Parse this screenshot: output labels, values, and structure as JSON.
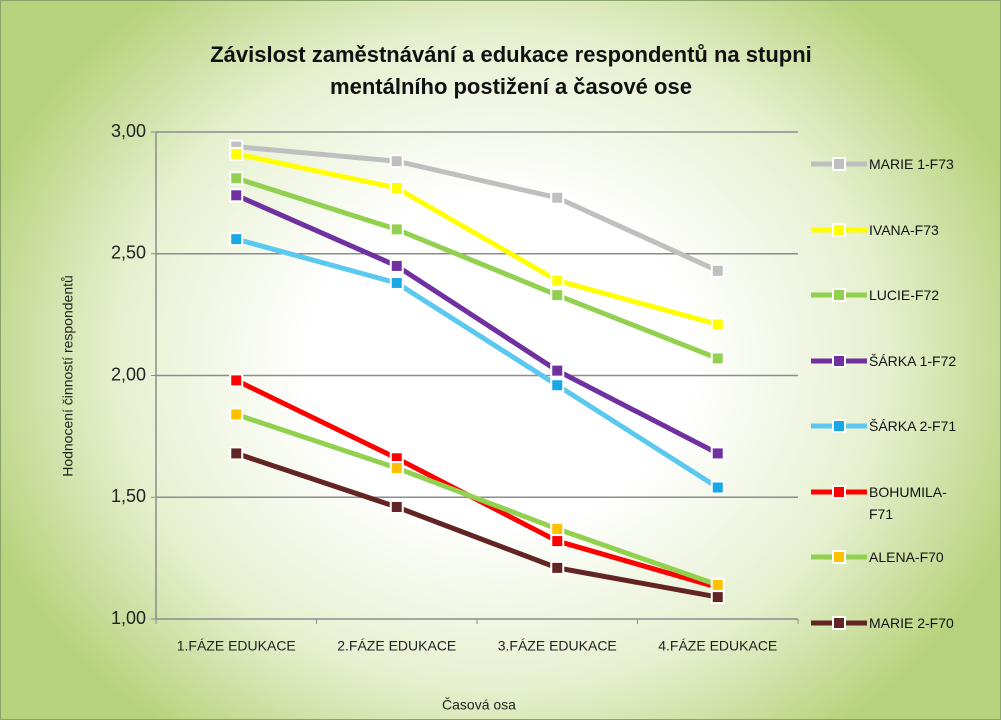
{
  "chart_data": {
    "type": "line",
    "title": "Závislost zaměstnávání a edukace respondentů na stupni mentálního postižení a časové ose",
    "x_label": "Časová osa",
    "y_label": "Hodnocení činností respondentů",
    "categories": [
      "1.FÁZE EDUKACE",
      "2.FÁZE EDUKACE",
      "3.FÁZE EDUKACE",
      "4.FÁZE EDUKACE"
    ],
    "ylim": [
      1,
      3
    ],
    "yticks": [
      {
        "value": 1,
        "label": "1,00"
      },
      {
        "value": 1.5,
        "label": "1,50"
      },
      {
        "value": 2,
        "label": "2,00"
      },
      {
        "value": 2.5,
        "label": "2,50"
      },
      {
        "value": 3,
        "label": "3,00"
      }
    ],
    "grid": true,
    "legend": "right",
    "series": [
      {
        "name": "MARIE 1-F73",
        "color": "#bfbfbf",
        "marker_color": "#bfbfbf",
        "values": [
          2.94,
          2.88,
          2.73,
          2.43
        ]
      },
      {
        "name": "IVANA-F73",
        "color": "#ffff00",
        "marker_color": "#ffff00",
        "values": [
          2.91,
          2.77,
          2.39,
          2.21
        ]
      },
      {
        "name": "LUCIE-F72",
        "color": "#92d050",
        "marker_color": "#92d050",
        "values": [
          2.81,
          2.6,
          2.33,
          2.07
        ]
      },
      {
        "name": "ŠÁRKA 1-F72",
        "color": "#7030a0",
        "marker_color": "#7030a0",
        "values": [
          2.74,
          2.45,
          2.02,
          1.68
        ]
      },
      {
        "name": "ŠÁRKA 2-F71",
        "color": "#5bc8ef",
        "marker_color": "#1aa7e6",
        "values": [
          2.56,
          2.38,
          1.96,
          1.54
        ]
      },
      {
        "name": "BOHUMILA-F71",
        "color": "#ff0000",
        "marker_color": "#ff0000",
        "values": [
          1.98,
          1.66,
          1.32,
          1.13
        ]
      },
      {
        "name": "ALENA-F70",
        "color": "#92d050",
        "marker_color": "#ffc000",
        "values": [
          1.84,
          1.62,
          1.37,
          1.14
        ]
      },
      {
        "name": "MARIE 2-F70",
        "color": "#632523",
        "marker_color": "#632523",
        "values": [
          1.68,
          1.46,
          1.21,
          1.09
        ]
      }
    ]
  }
}
